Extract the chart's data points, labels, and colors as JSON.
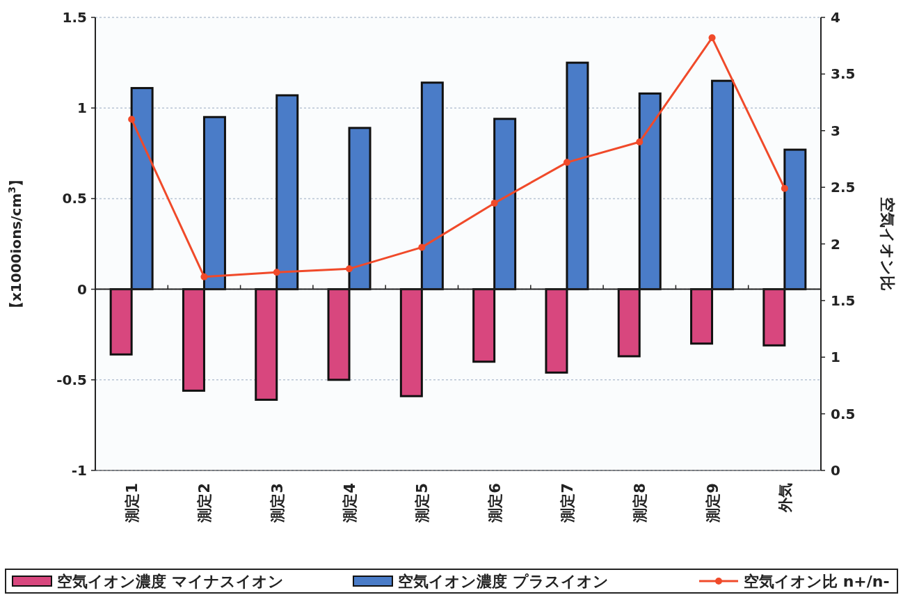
{
  "chart_data": {
    "type": "bar",
    "ylabel": "【x1000ions/cm$^{3}$】",
    "y2label": "空気イオン比",
    "categories": [
      "測定1",
      "測定2",
      "測定3",
      "測定4",
      "測定5",
      "測定6",
      "測定7",
      "測定8",
      "測定9",
      "外気"
    ],
    "series": [
      {
        "name": "空気イオン濃度 マイナスイオン",
        "color": "#d8477e",
        "values": [
          -0.36,
          -0.56,
          -0.61,
          -0.5,
          -0.59,
          -0.4,
          -0.46,
          -0.37,
          -0.3,
          -0.31
        ]
      },
      {
        "name": "空気イオン濃度 プラスイオン",
        "color": "#4a7cc8",
        "values": [
          1.11,
          0.95,
          1.07,
          0.89,
          1.14,
          0.94,
          1.25,
          1.08,
          1.15,
          0.77
        ]
      },
      {
        "name": "空気イオン比 n+/n-",
        "type": "line",
        "axis": "y2",
        "marker": "circle",
        "color": "#f04a2a",
        "values": [
          3.1,
          1.71,
          1.75,
          1.78,
          1.97,
          2.36,
          2.72,
          2.9,
          3.82,
          2.49
        ]
      }
    ],
    "ylim": [
      -1,
      1.5
    ],
    "yticks": [
      -1,
      -0.5,
      0,
      0.5,
      1,
      1.5
    ],
    "y2lim": [
      0,
      4
    ],
    "y2ticks": [
      0,
      0.5,
      1,
      1.5,
      2,
      2.5,
      3,
      3.5,
      4
    ],
    "grid": "y",
    "legend": "bottom"
  }
}
